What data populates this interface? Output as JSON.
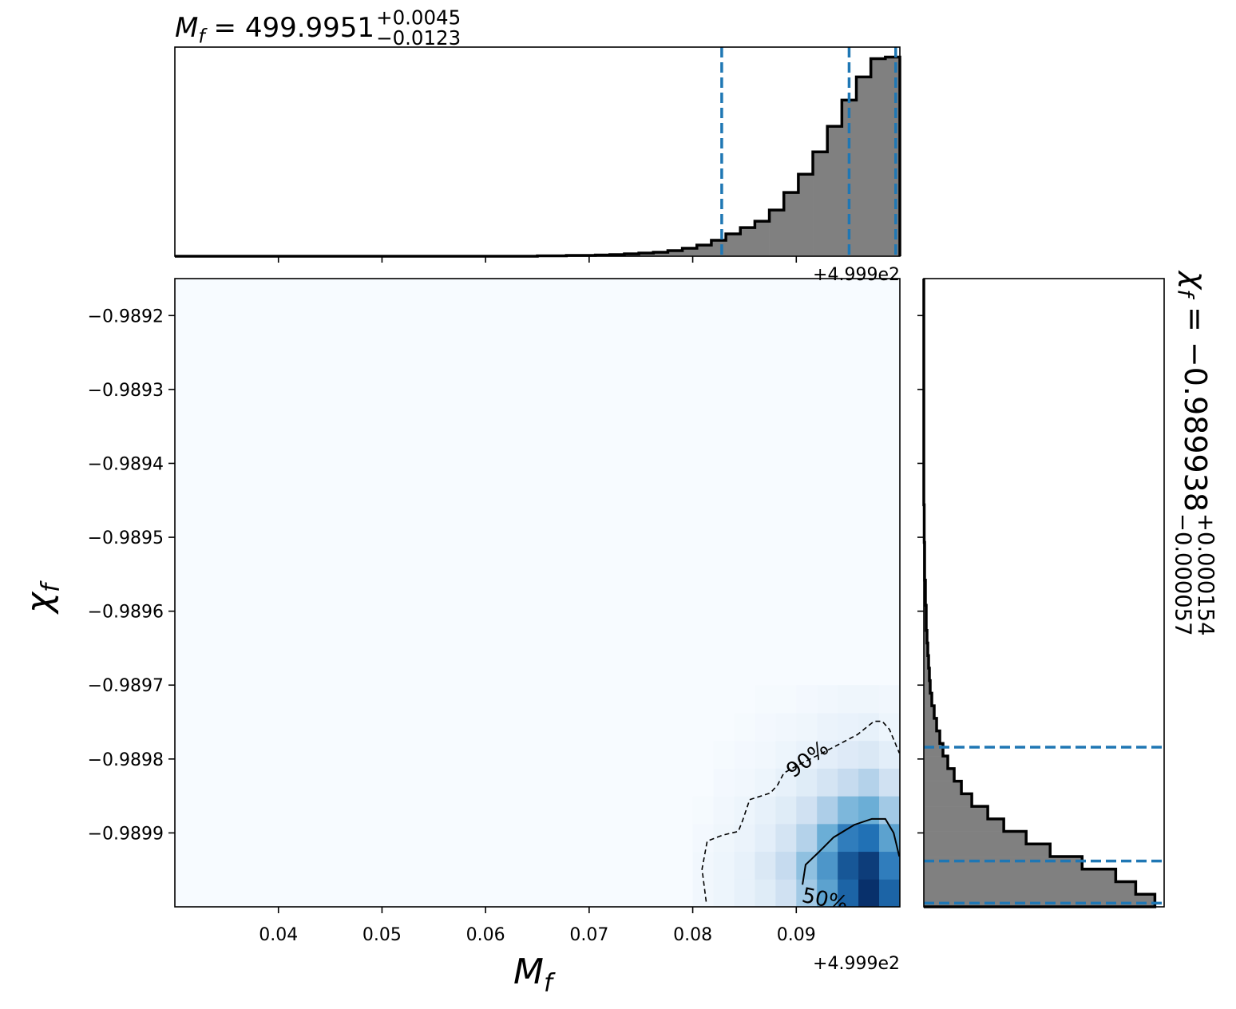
{
  "chart_data": {
    "type": "corner",
    "title": {
      "symbol": "M",
      "subscript": "f",
      "value": " = 499.9951",
      "upper": "+0.0045",
      "lower": "−0.0123"
    },
    "right_title": {
      "symbol": "χ",
      "subscript": "f",
      "value": " = −0.989938",
      "upper": "+0.000154",
      "lower": "−0.000057"
    },
    "xlabel": {
      "symbol": "M",
      "subscript": "f"
    },
    "ylabel": {
      "symbol": "χ",
      "subscript": "f"
    },
    "x_offset_label": "+4.999e2",
    "xlim": [
      0.03,
      0.1
    ],
    "xticks": [
      0.04,
      0.05,
      0.06,
      0.07,
      0.08,
      0.09
    ],
    "ylim": [
      -0.99,
      -0.98915
    ],
    "yticks": [
      {
        "value": -0.9892,
        "label": "−0.9892"
      },
      {
        "value": -0.9893,
        "label": "−0.9893"
      },
      {
        "value": -0.9894,
        "label": "−0.9894"
      },
      {
        "value": -0.9895,
        "label": "−0.9895"
      },
      {
        "value": -0.9896,
        "label": "−0.9896"
      },
      {
        "value": -0.9897,
        "label": "−0.9897"
      },
      {
        "value": -0.9898,
        "label": "−0.9898"
      },
      {
        "value": -0.9899,
        "label": "−0.9899"
      }
    ],
    "hist_color": "#808080",
    "quantile_color": "#1f77b4",
    "x_hist": {
      "bins": [
        0.03,
        0.0314,
        0.0328,
        0.0342,
        0.0356,
        0.037,
        0.0384,
        0.0398,
        0.0412,
        0.0426,
        0.044,
        0.0454,
        0.0468,
        0.0482,
        0.0496,
        0.051,
        0.0524,
        0.0538,
        0.0552,
        0.0566,
        0.058,
        0.0594,
        0.0608,
        0.0622,
        0.0636,
        0.065,
        0.0664,
        0.0678,
        0.0692,
        0.0706,
        0.072,
        0.0734,
        0.0748,
        0.0762,
        0.0776,
        0.079,
        0.0804,
        0.0818,
        0.0832,
        0.0846,
        0.086,
        0.0874,
        0.0888,
        0.0902,
        0.0916,
        0.093,
        0.0944,
        0.0958,
        0.0972,
        0.0986,
        0.1
      ],
      "counts": [
        0,
        0,
        0,
        0,
        0,
        0,
        0,
        0,
        0,
        0,
        0,
        0,
        0,
        0,
        0,
        0,
        0,
        0,
        0,
        0,
        0,
        0,
        0,
        0,
        0,
        0.5,
        0.5,
        1,
        1,
        1.5,
        2,
        3,
        4,
        5,
        7,
        10,
        14,
        20,
        28,
        36,
        44,
        58,
        80,
        103,
        131,
        163,
        196,
        225,
        248,
        250
      ],
      "quantiles": [
        0.0828,
        0.0951,
        0.0996
      ]
    },
    "y_hist": {
      "bins": [
        -0.99,
        -0.989983,
        -0.989966,
        -0.989949,
        -0.989932,
        -0.989915,
        -0.989898,
        -0.989881,
        -0.989864,
        -0.989847,
        -0.98983,
        -0.989813,
        -0.989796,
        -0.989779,
        -0.989762,
        -0.989745,
        -0.989728,
        -0.989711,
        -0.989694,
        -0.989677,
        -0.98966,
        -0.989643,
        -0.989626,
        -0.989609,
        -0.989592,
        -0.989575,
        -0.989558,
        -0.989541,
        -0.989524,
        -0.989507,
        -0.98949,
        -0.989473,
        -0.989456,
        -0.989439,
        -0.989422,
        -0.989405,
        -0.989388,
        -0.989371,
        -0.989354,
        -0.989337,
        -0.98932,
        -0.989303,
        -0.989286,
        -0.989269,
        -0.989252,
        -0.989235,
        -0.989218,
        -0.989201,
        -0.989184,
        -0.989167,
        -0.98915
      ],
      "counts": [
        289,
        265,
        240,
        198,
        158,
        128,
        100,
        80,
        60,
        47,
        38,
        30,
        24,
        20,
        16,
        13,
        10,
        8,
        7,
        6,
        5,
        4,
        3,
        3,
        2,
        2,
        1,
        1,
        1,
        0.5,
        0.5,
        0.5,
        0,
        0,
        0,
        0,
        0,
        0,
        0,
        0,
        0,
        0,
        0,
        0,
        0,
        0,
        0,
        0,
        0,
        0
      ],
      "quantiles": [
        -0.989784,
        -0.989938,
        -0.989995
      ]
    },
    "density": {
      "xlim": [
        0.08,
        0.1
      ],
      "ylim": [
        -0.99,
        -0.9897
      ],
      "rows": [
        [
          0.03,
          0.05,
          0.08,
          0.12,
          0.2,
          0.35,
          0.55,
          0.8,
          1.0,
          0.8
        ],
        [
          0.03,
          0.05,
          0.08,
          0.15,
          0.25,
          0.4,
          0.6,
          0.85,
          0.95,
          0.7
        ],
        [
          0.02,
          0.04,
          0.06,
          0.1,
          0.18,
          0.3,
          0.5,
          0.7,
          0.75,
          0.55
        ],
        [
          0.01,
          0.03,
          0.05,
          0.08,
          0.12,
          0.2,
          0.32,
          0.45,
          0.5,
          0.35
        ],
        [
          0,
          0.02,
          0.03,
          0.05,
          0.08,
          0.12,
          0.18,
          0.25,
          0.3,
          0.2
        ],
        [
          0,
          0.01,
          0.02,
          0.03,
          0.05,
          0.07,
          0.1,
          0.13,
          0.15,
          0.1
        ],
        [
          0,
          0,
          0.01,
          0.02,
          0.03,
          0.04,
          0.06,
          0.07,
          0.08,
          0.05
        ],
        [
          0,
          0,
          0,
          0.01,
          0.01,
          0.02,
          0.03,
          0.04,
          0.04,
          0.03
        ]
      ]
    },
    "contours": [
      {
        "name": "90%",
        "dashed": true,
        "x": [
          0.0813,
          0.0809,
          0.0814,
          0.0829,
          0.0844,
          0.0848,
          0.0855,
          0.0875,
          0.0882,
          0.0888,
          0.0902,
          0.0925,
          0.094,
          0.0959,
          0.0975,
          0.0983,
          0.099,
          0.09995
        ],
        "y": [
          -0.989993,
          -0.989949,
          -0.989911,
          -0.989903,
          -0.989898,
          -0.989884,
          -0.989855,
          -0.989846,
          -0.989835,
          -0.989819,
          -0.989808,
          -0.989792,
          -0.989781,
          -0.989767,
          -0.989749,
          -0.989749,
          -0.98976,
          -0.989792
        ]
      },
      {
        "name": "50%",
        "dashed": false,
        "x": [
          0.0906,
          0.0909,
          0.0921,
          0.0936,
          0.0956,
          0.0973,
          0.0986,
          0.0994,
          0.09995
        ],
        "y": [
          -0.98997,
          -0.989943,
          -0.989927,
          -0.989906,
          -0.989889,
          -0.989881,
          -0.989881,
          -0.9899,
          -0.989932
        ]
      }
    ]
  }
}
